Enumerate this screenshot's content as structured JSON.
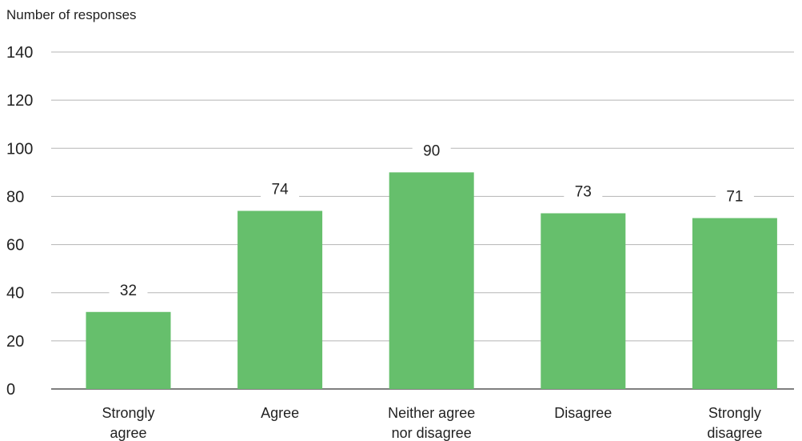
{
  "chart_data": {
    "type": "bar",
    "title": "",
    "ylabel": "Number of responses",
    "xlabel": "",
    "categories": [
      [
        "Strongly",
        "agree"
      ],
      [
        "Agree"
      ],
      [
        "Neither agree",
        "nor disagree"
      ],
      [
        "Disagree"
      ],
      [
        "Strongly",
        "disagree"
      ]
    ],
    "values": [
      32,
      74,
      90,
      73,
      71
    ],
    "ylim": [
      0,
      140
    ],
    "yticks": [
      0,
      20,
      40,
      60,
      80,
      100,
      120,
      140
    ],
    "grid": true,
    "data_labels": true,
    "bar_color": "#66bf6c",
    "grid_color": "#b5b5b5"
  }
}
